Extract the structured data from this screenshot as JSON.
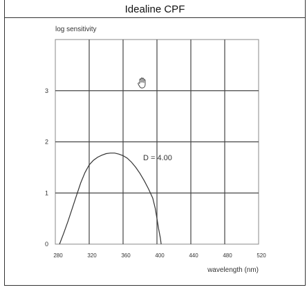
{
  "window": {
    "title": "Idealine CPF"
  },
  "chart_data": {
    "type": "line",
    "title": "Idealine CPF",
    "xlabel": "wavelength (nm)",
    "ylabel": "log sensitivity",
    "xlim": [
      280,
      520
    ],
    "ylim": [
      0,
      4
    ],
    "x_ticks": [
      280,
      320,
      360,
      400,
      440,
      480,
      520
    ],
    "y_ticks": [
      0,
      1,
      2,
      3
    ],
    "grid": true,
    "annotation": "D = 4.00",
    "series": [
      {
        "x": [
          285,
          290,
          295,
          300,
          305,
          310,
          315,
          320,
          325,
          330,
          335,
          340,
          345,
          350,
          355,
          360,
          365,
          370,
          375,
          380,
          385,
          390,
          395,
          398,
          400,
          402,
          404,
          405
        ],
        "values": [
          0.0,
          0.22,
          0.45,
          0.7,
          0.95,
          1.2,
          1.4,
          1.55,
          1.64,
          1.7,
          1.74,
          1.77,
          1.78,
          1.78,
          1.76,
          1.73,
          1.68,
          1.6,
          1.5,
          1.38,
          1.24,
          1.08,
          0.9,
          0.7,
          0.5,
          0.3,
          0.12,
          0.0
        ]
      }
    ]
  }
}
